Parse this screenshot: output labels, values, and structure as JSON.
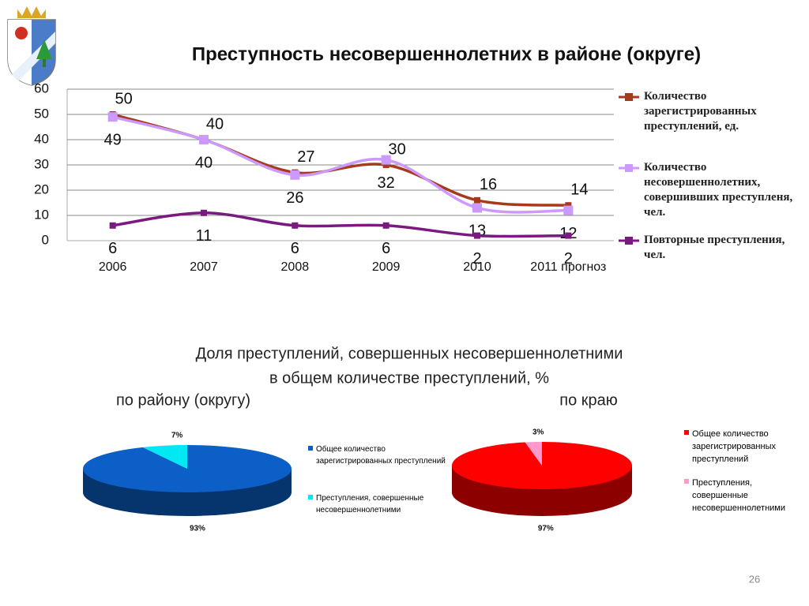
{
  "title": "Преступность несовершеннолетних в районе (округе)",
  "pies_heading": [
    "Доля преступлений, совершенных несовершеннолетними",
    "в общем количестве преступлений, %"
  ],
  "page_number": "26",
  "chart_data": [
    {
      "type": "line",
      "categories": [
        "2006",
        "2007",
        "2008",
        "2009",
        "2010",
        "2011 прогноз"
      ],
      "ylim": [
        0,
        60
      ],
      "yticks": [
        0,
        10,
        20,
        30,
        40,
        50,
        60
      ],
      "grid": true,
      "legend": "right",
      "series": [
        {
          "name": "Количество зарегистрированных преступлений, ед.",
          "color": "#a83a1c",
          "values": [
            50,
            40,
            27,
            30,
            16,
            14
          ]
        },
        {
          "name": "Количество несовершеннолетних, совершивших преступленя, чел.",
          "color": "#cc99ff",
          "values": [
            49,
            40,
            26,
            32,
            13,
            12
          ]
        },
        {
          "name": "Повторные преступления, чел.",
          "color": "#7a1a80",
          "values": [
            6,
            11,
            6,
            6,
            2,
            2
          ]
        }
      ]
    },
    {
      "type": "pie",
      "subtitle": "по району (округу)",
      "categories": [
        "Общее количество зарегистрированных преступлений",
        "Преступления, совершенные несовершеннолетними"
      ],
      "values": [
        93,
        7
      ],
      "value_labels": [
        "93%",
        "7%"
      ],
      "colors": [
        "#0b5fc6",
        "#00e8f4"
      ]
    },
    {
      "type": "pie",
      "subtitle": "по краю",
      "categories": [
        "Общее количество зарегистрированных преступлений",
        "Преступления, совершенные несовершеннолетними"
      ],
      "values": [
        97,
        3
      ],
      "value_labels": [
        "97%",
        "3%"
      ],
      "colors": [
        "#ff0000",
        "#ff99cc"
      ]
    }
  ]
}
